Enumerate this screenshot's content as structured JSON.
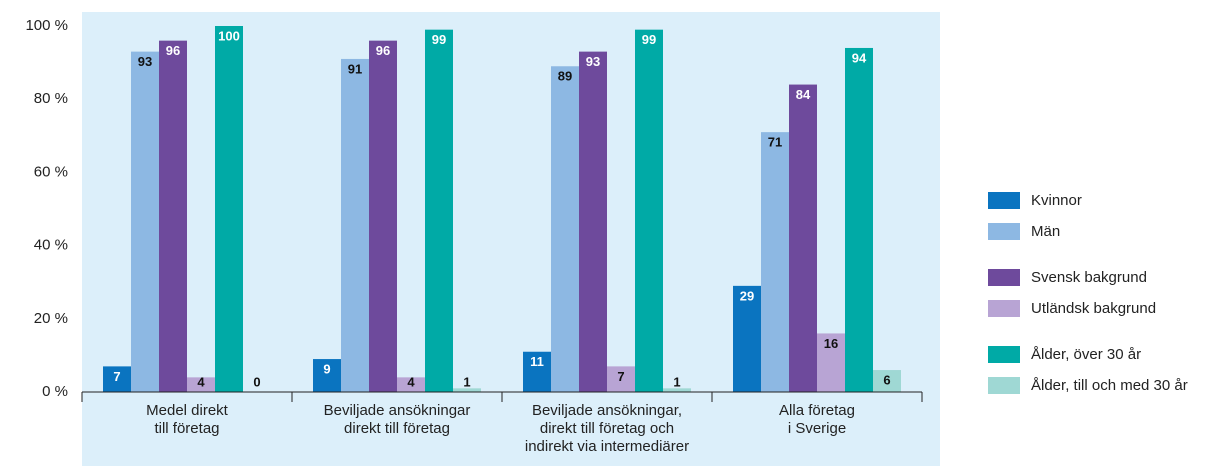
{
  "chart_data": {
    "type": "bar",
    "categories": [
      "Medel direkt\ntill företag",
      "Beviljade ansökningar\ndirekt till företag",
      "Beviljade ansökningar,\ndirekt till företag och\nindirekt via intermediärer",
      "Alla företag\ni Sverige"
    ],
    "series": [
      {
        "name": "Kvinnor",
        "color": "#0a74c0",
        "values": [
          7,
          9,
          11,
          29
        ]
      },
      {
        "name": "Män",
        "color": "#8db8e3",
        "values": [
          93,
          91,
          89,
          71
        ]
      },
      {
        "name": "Svensk bakgrund",
        "color": "#6e4a9c",
        "values": [
          96,
          96,
          93,
          84
        ]
      },
      {
        "name": "Utländsk bakgrund",
        "color": "#b8a4d4",
        "values": [
          4,
          4,
          7,
          16
        ]
      },
      {
        "name": "Ålder, över 30 år",
        "color": "#00aaa6",
        "values": [
          100,
          99,
          99,
          94
        ]
      },
      {
        "name": "Ålder, till och med 30 år",
        "color": "#9fd8d4",
        "values": [
          0,
          1,
          1,
          6
        ]
      }
    ],
    "ylim": [
      0,
      100
    ],
    "yticks": [
      {
        "value": 0,
        "label": "0 %"
      },
      {
        "value": 20,
        "label": "20 %"
      },
      {
        "value": 40,
        "label": "40 %"
      },
      {
        "value": 60,
        "label": "60 %"
      },
      {
        "value": 80,
        "label": "80 %"
      },
      {
        "value": 100,
        "label": "100 %"
      }
    ],
    "grid": false,
    "legend": "right"
  }
}
